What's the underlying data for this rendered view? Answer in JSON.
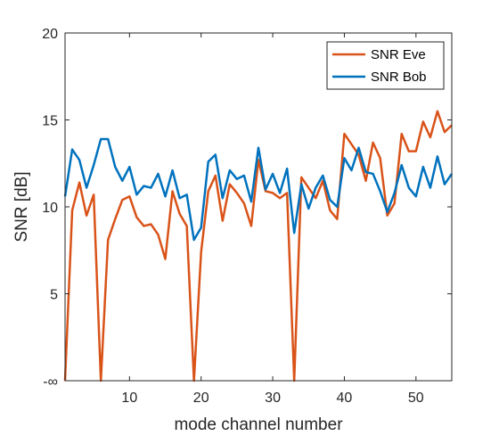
{
  "chart_data": {
    "type": "line",
    "title": "",
    "xlabel": "mode channel number",
    "ylabel": "SNR [dB]",
    "xlim": [
      1,
      55
    ],
    "ylim": [
      0,
      20
    ],
    "grid": false,
    "legend_position": "top-right",
    "x_ticks": [
      10,
      20,
      30,
      40,
      50
    ],
    "x_tick_labels": [
      "10",
      "20",
      "30",
      "40",
      "50"
    ],
    "y_ticks": [
      0,
      5,
      10,
      15,
      20
    ],
    "y_tick_labels": [
      "-∞",
      "5",
      "10",
      "15",
      "20"
    ],
    "x": [
      1,
      2,
      3,
      4,
      5,
      6,
      7,
      8,
      9,
      10,
      11,
      12,
      13,
      14,
      15,
      16,
      17,
      18,
      19,
      20,
      21,
      22,
      23,
      24,
      25,
      26,
      27,
      28,
      29,
      30,
      31,
      32,
      33,
      34,
      35,
      36,
      37,
      38,
      39,
      40,
      41,
      42,
      43,
      44,
      45,
      46,
      47,
      48,
      49,
      50,
      51,
      52,
      53,
      54,
      55
    ],
    "series": [
      {
        "name": "SNR Eve",
        "color": "#D95319",
        "values": [
          0,
          9.8,
          11.4,
          9.5,
          10.7,
          0,
          8.1,
          9.3,
          10.4,
          10.6,
          9.4,
          8.9,
          9.0,
          8.4,
          7.0,
          10.9,
          9.6,
          8.9,
          0,
          7.4,
          10.9,
          11.8,
          9.2,
          11.3,
          10.8,
          10.2,
          8.9,
          12.7,
          10.9,
          10.8,
          10.5,
          10.8,
          0,
          11.7,
          11.1,
          10.5,
          11.5,
          9.8,
          9.3,
          14.2,
          13.6,
          13.0,
          11.5,
          13.7,
          12.8,
          9.5,
          10.2,
          14.2,
          13.2,
          13.2,
          14.9,
          14.0,
          15.5,
          14.3,
          14.7
        ]
      },
      {
        "name": "SNR Bob",
        "color": "#0072BD",
        "values": [
          10.6,
          13.3,
          12.7,
          11.1,
          12.4,
          13.9,
          13.9,
          12.3,
          11.5,
          12.3,
          10.7,
          11.2,
          11.1,
          11.9,
          10.6,
          12.1,
          10.5,
          10.7,
          8.1,
          8.8,
          12.6,
          13.0,
          10.5,
          12.1,
          11.6,
          11.8,
          10.3,
          13.4,
          11.0,
          11.9,
          10.8,
          12.2,
          8.5,
          11.3,
          9.9,
          11.1,
          11.8,
          10.4,
          10.0,
          12.8,
          12.1,
          13.4,
          12.0,
          11.9,
          10.9,
          9.7,
          10.8,
          12.4,
          11.1,
          10.6,
          12.3,
          11.1,
          12.9,
          11.3,
          11.9
        ]
      }
    ]
  }
}
